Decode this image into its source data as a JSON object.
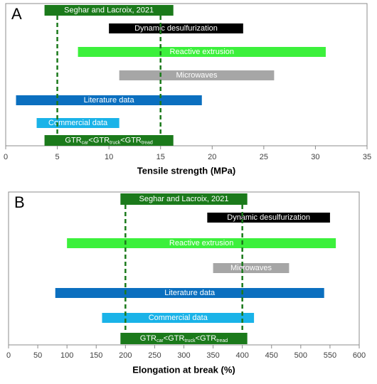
{
  "chart_data": [
    {
      "type": "range-bar",
      "panel_label": "A",
      "xlabel": "Tensile strength (MPa)",
      "xlim": [
        0,
        35
      ],
      "xticks": [
        0,
        5,
        10,
        15,
        20,
        25,
        30,
        35
      ],
      "reference": {
        "name": "Seghar and Lacroix, 2021",
        "color": "#1b7a1b",
        "values": [
          5,
          15
        ]
      },
      "note": [
        "GTR",
        "car",
        "<GTR",
        "truck",
        "<GTR",
        "tread"
      ],
      "series": [
        {
          "name": "Dynamic desulfurization",
          "color": "#000000",
          "values": [
            10,
            23
          ]
        },
        {
          "name": "Reactive extrusion",
          "color": "#3cf03c",
          "values": [
            7,
            31
          ]
        },
        {
          "name": "Microwaves",
          "color": "#a6a6a6",
          "values": [
            11,
            26
          ]
        },
        {
          "name": "Literature data",
          "color": "#0b6fbf",
          "values": [
            1,
            19
          ]
        },
        {
          "name": "Commercial data",
          "color": "#1ab3e8",
          "values": [
            3,
            11
          ]
        }
      ]
    },
    {
      "type": "range-bar",
      "panel_label": "B",
      "xlabel": "Elongation at break (%)",
      "xlim": [
        0,
        600
      ],
      "xticks": [
        0,
        50,
        100,
        150,
        200,
        250,
        300,
        350,
        400,
        450,
        500,
        550,
        600
      ],
      "reference": {
        "name": "Seghar and Lacroix, 2021",
        "color": "#1b7a1b",
        "values": [
          200,
          400
        ]
      },
      "note": [
        "GTR",
        "car",
        "<GTR",
        "truck",
        "<GTR",
        "tread"
      ],
      "series": [
        {
          "name": "Dynamic desulfurization",
          "color": "#000000",
          "values": [
            340,
            550
          ]
        },
        {
          "name": "Reactive extrusion",
          "color": "#3cf03c",
          "values": [
            100,
            560
          ]
        },
        {
          "name": "Microwaves",
          "color": "#a6a6a6",
          "values": [
            350,
            480
          ]
        },
        {
          "name": "Literature data",
          "color": "#0b6fbf",
          "values": [
            80,
            540
          ]
        },
        {
          "name": "Commercial data",
          "color": "#1ab3e8",
          "values": [
            160,
            420
          ]
        }
      ]
    }
  ]
}
